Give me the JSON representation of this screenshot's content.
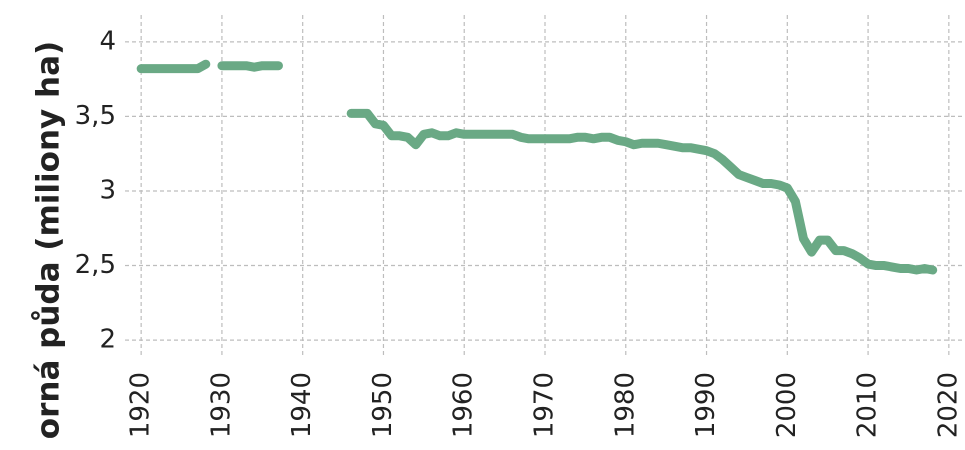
{
  "chart_data": {
    "type": "line",
    "y_label": "orná půda (miliony ha)",
    "x": [
      1920,
      1921,
      1922,
      1923,
      1924,
      1925,
      1926,
      1927,
      1928,
      1929,
      1930,
      1931,
      1932,
      1933,
      1934,
      1935,
      1936,
      1937,
      1938,
      1946,
      1947,
      1948,
      1949,
      1950,
      1951,
      1952,
      1953,
      1954,
      1955,
      1956,
      1957,
      1958,
      1959,
      1960,
      1961,
      1962,
      1963,
      1964,
      1965,
      1966,
      1967,
      1968,
      1969,
      1970,
      1971,
      1972,
      1973,
      1974,
      1975,
      1976,
      1977,
      1978,
      1979,
      1980,
      1981,
      1982,
      1983,
      1984,
      1985,
      1986,
      1987,
      1988,
      1989,
      1990,
      1991,
      1992,
      1993,
      1994,
      1995,
      1996,
      1997,
      1998,
      1999,
      2000,
      2001,
      2002,
      2003,
      2004,
      2005,
      2006,
      2007,
      2008,
      2009,
      2010,
      2011,
      2012,
      2013,
      2014,
      2015,
      2016,
      2017,
      2018
    ],
    "series": [
      {
        "color": "#6aa985",
        "values": [
          3.82,
          3.82,
          3.82,
          3.82,
          3.82,
          3.82,
          3.82,
          3.82,
          3.85,
          null,
          3.84,
          3.84,
          3.84,
          3.84,
          3.83,
          3.84,
          3.84,
          3.84,
          null,
          3.52,
          3.52,
          3.52,
          3.45,
          3.44,
          3.37,
          3.37,
          3.36,
          3.31,
          3.38,
          3.39,
          3.37,
          3.37,
          3.39,
          3.38,
          3.38,
          3.38,
          3.38,
          3.38,
          3.38,
          3.38,
          3.36,
          3.35,
          3.35,
          3.35,
          3.35,
          3.35,
          3.35,
          3.36,
          3.36,
          3.35,
          3.36,
          3.36,
          3.34,
          3.33,
          3.31,
          3.32,
          3.32,
          3.32,
          3.31,
          3.3,
          3.29,
          3.29,
          3.28,
          3.27,
          3.25,
          3.21,
          3.16,
          3.11,
          3.09,
          3.07,
          3.05,
          3.05,
          3.04,
          3.02,
          2.93,
          2.68,
          2.59,
          2.67,
          2.67,
          2.6,
          2.6,
          2.58,
          2.55,
          2.51,
          2.5,
          2.5,
          2.49,
          2.48,
          2.48,
          2.47,
          2.48,
          2.47
        ]
      }
    ],
    "xlim": [
      1918,
      2022
    ],
    "xticks": [
      1920,
      1930,
      1940,
      1950,
      1960,
      1970,
      1980,
      1990,
      2000,
      2010,
      2020
    ],
    "ylim": [
      1.9,
      4.18
    ],
    "yticks": [
      2,
      {
        "value": 2.5,
        "label": "2,5"
      },
      3,
      {
        "value": 3.5,
        "label": "3,5"
      },
      4
    ],
    "grid": true
  }
}
